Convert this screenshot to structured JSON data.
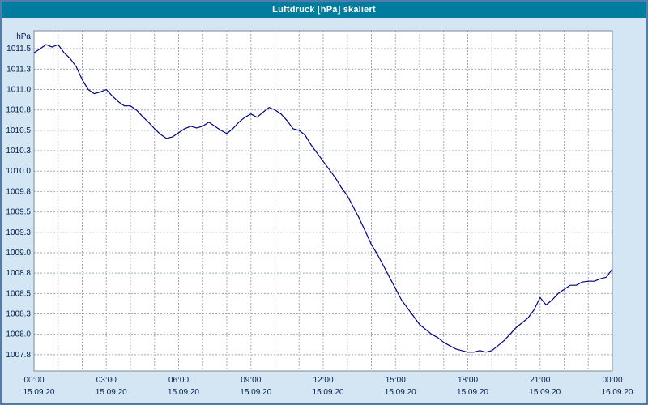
{
  "window": {
    "title": "Luftdruck [hPa] skaliert"
  },
  "colors": {
    "titlebar": "#007c9e",
    "title_text": "#ffffff",
    "background": "#d4e5f3",
    "plot_bg": "#ffffff",
    "plot_border": "#7c8a99",
    "grid": "#9caab8",
    "label": "#002050",
    "line": "#000080",
    "window_border": "#4f7dab"
  },
  "chart_data": {
    "type": "line",
    "title": "Luftdruck [hPa] skaliert",
    "xlabel": "",
    "ylabel": "hPa",
    "xlim": [
      0,
      24
    ],
    "ylim": [
      1007.55,
      1011.72
    ],
    "grid": "on",
    "grid_style": "dashed",
    "x_grid_step": 1,
    "y_grid_step": 0.25,
    "legend_position": "none",
    "y_ticks": [
      {
        "value": 1011.5,
        "label": "1011.5"
      },
      {
        "value": 1011.25,
        "label": "1011.3"
      },
      {
        "value": 1011.0,
        "label": "1011.0"
      },
      {
        "value": 1010.75,
        "label": "1010.8"
      },
      {
        "value": 1010.5,
        "label": "1010.5"
      },
      {
        "value": 1010.25,
        "label": "1010.3"
      },
      {
        "value": 1010.0,
        "label": "1010.0"
      },
      {
        "value": 1009.75,
        "label": "1009.8"
      },
      {
        "value": 1009.5,
        "label": "1009.5"
      },
      {
        "value": 1009.25,
        "label": "1009.3"
      },
      {
        "value": 1009.0,
        "label": "1009.0"
      },
      {
        "value": 1008.75,
        "label": "1008.8"
      },
      {
        "value": 1008.5,
        "label": "1008.5"
      },
      {
        "value": 1008.25,
        "label": "1008.3"
      },
      {
        "value": 1008.0,
        "label": "1008.0"
      },
      {
        "value": 1007.75,
        "label": "1007.8"
      }
    ],
    "x_ticks": [
      {
        "hour": 0,
        "time": "00:00",
        "date": "15.09.20"
      },
      {
        "hour": 3,
        "time": "03:00",
        "date": "15.09.20"
      },
      {
        "hour": 6,
        "time": "06:00",
        "date": "15.09.20"
      },
      {
        "hour": 9,
        "time": "09:00",
        "date": "15.09.20"
      },
      {
        "hour": 12,
        "time": "12:00",
        "date": "15.09.20"
      },
      {
        "hour": 15,
        "time": "15:00",
        "date": "15.09.20"
      },
      {
        "hour": 18,
        "time": "18:00",
        "date": "15.09.20"
      },
      {
        "hour": 21,
        "time": "21:00",
        "date": "15.09.20"
      },
      {
        "hour": 24,
        "time": "00:00",
        "date": "16.09.20"
      }
    ],
    "series": [
      {
        "name": "Luftdruck",
        "unit": "hPa",
        "color": "#000080",
        "x_start": 0,
        "x_step_hours": 0.25,
        "values": [
          1011.45,
          1011.5,
          1011.55,
          1011.52,
          1011.55,
          1011.45,
          1011.38,
          1011.28,
          1011.12,
          1011.0,
          1010.95,
          1010.97,
          1011.0,
          1010.92,
          1010.85,
          1010.8,
          1010.8,
          1010.75,
          1010.67,
          1010.6,
          1010.52,
          1010.45,
          1010.4,
          1010.42,
          1010.47,
          1010.52,
          1010.55,
          1010.53,
          1010.55,
          1010.6,
          1010.55,
          1010.5,
          1010.46,
          1010.52,
          1010.6,
          1010.66,
          1010.7,
          1010.66,
          1010.72,
          1010.78,
          1010.75,
          1010.7,
          1010.62,
          1010.52,
          1010.5,
          1010.44,
          1010.32,
          1010.22,
          1010.12,
          1010.02,
          1009.92,
          1009.8,
          1009.7,
          1009.56,
          1009.42,
          1009.26,
          1009.1,
          1008.98,
          1008.84,
          1008.7,
          1008.56,
          1008.42,
          1008.32,
          1008.22,
          1008.12,
          1008.06,
          1008.0,
          1007.96,
          1007.9,
          1007.86,
          1007.82,
          1007.8,
          1007.78,
          1007.78,
          1007.8,
          1007.78,
          1007.8,
          1007.86,
          1007.92,
          1008.0,
          1008.08,
          1008.14,
          1008.2,
          1008.3,
          1008.45,
          1008.36,
          1008.42,
          1008.5,
          1008.55,
          1008.6,
          1008.6,
          1008.64,
          1008.65,
          1008.65,
          1008.68,
          1008.7,
          1008.8
        ]
      }
    ]
  }
}
